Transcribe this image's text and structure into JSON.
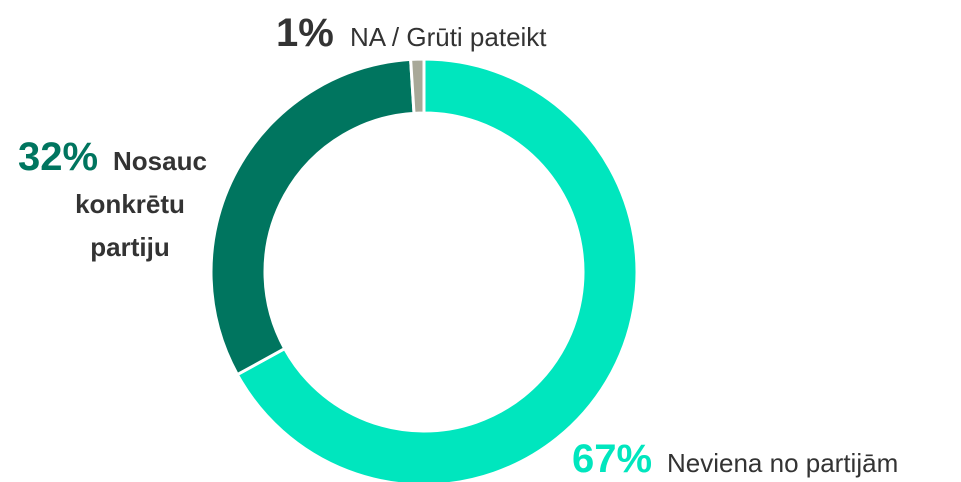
{
  "chart_data": {
    "type": "pie",
    "donut": true,
    "categories": [
      "Neviena no partijām",
      "Nosauc konkrētu partiju",
      "NA / Grūti pateikt"
    ],
    "values": [
      67,
      32,
      1
    ],
    "value_labels": [
      "67%",
      "32%",
      "1%"
    ],
    "colors": [
      "#00e6be",
      "#00755f",
      "#a8a898"
    ],
    "value_label_colors": [
      "#00e6be",
      "#00755f",
      "#333333"
    ]
  }
}
